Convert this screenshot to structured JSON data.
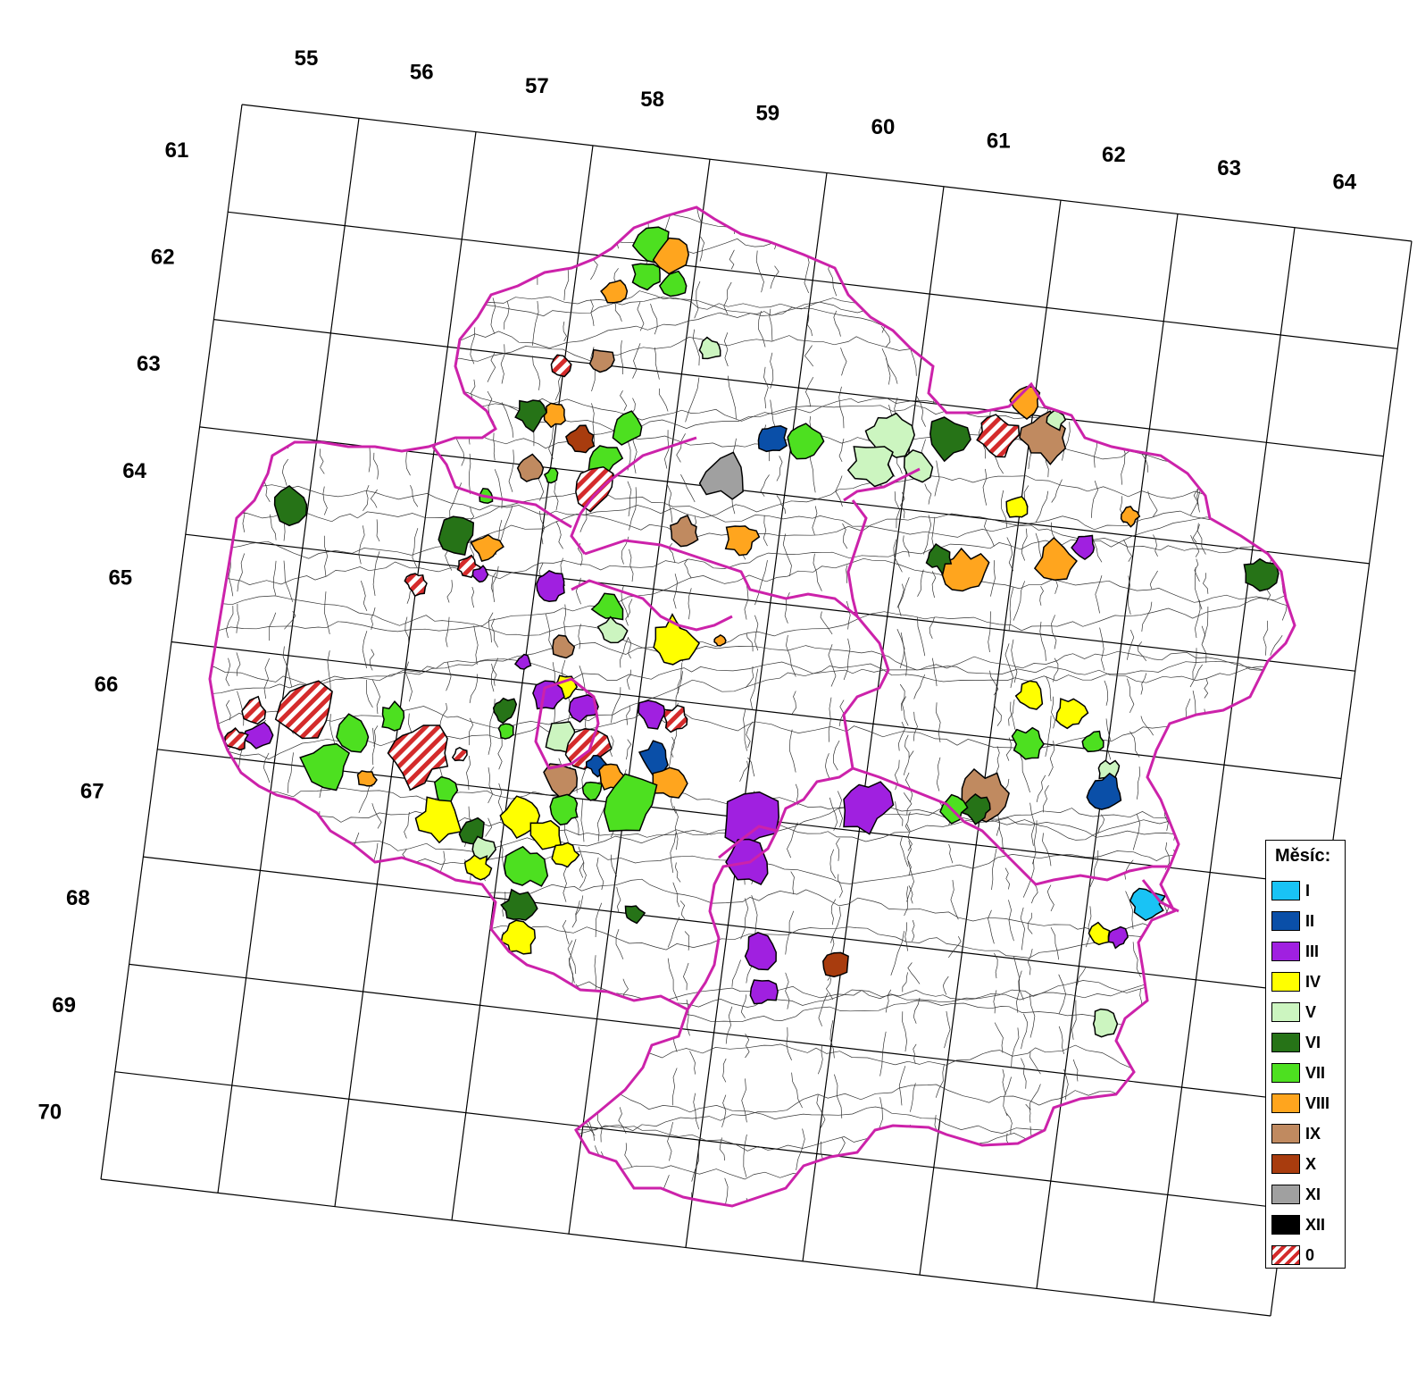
{
  "map": {
    "column_labels": [
      "55",
      "56",
      "57",
      "58",
      "59",
      "60",
      "61",
      "62",
      "63",
      "64"
    ],
    "row_labels": [
      "61",
      "62",
      "63",
      "64",
      "65",
      "66",
      "67",
      "68",
      "69",
      "70"
    ],
    "colors": {
      "region_border": "#cc22aa",
      "grid_line": "#000000",
      "district_line": "#333333"
    }
  },
  "legend": {
    "title": "Měsíc:",
    "items": [
      {
        "label": "I",
        "color": "#19c3f5"
      },
      {
        "label": "II",
        "color": "#0a4fa8"
      },
      {
        "label": "III",
        "color": "#a020e0"
      },
      {
        "label": "IV",
        "color": "#ffff00"
      },
      {
        "label": "V",
        "color": "#ccf5c0"
      },
      {
        "label": "VI",
        "color": "#267317"
      },
      {
        "label": "VII",
        "color": "#4de020"
      },
      {
        "label": "VIII",
        "color": "#ffa51e"
      },
      {
        "label": "IX",
        "color": "#c08a60"
      },
      {
        "label": "X",
        "color": "#a83c0e"
      },
      {
        "label": "XI",
        "color": "#a0a0a0"
      },
      {
        "label": "XII",
        "color": "#000000"
      },
      {
        "label": "0",
        "color": "hatch"
      }
    ]
  }
}
